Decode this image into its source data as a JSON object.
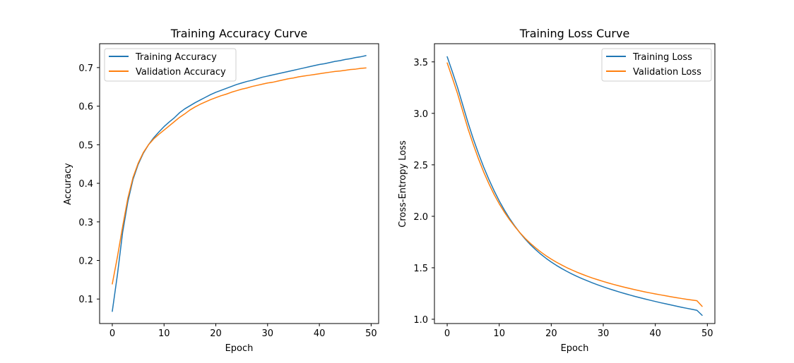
{
  "chart_data": [
    {
      "type": "line",
      "title": "Training Accuracy Curve",
      "xlabel": "Epoch",
      "ylabel": "Accuracy",
      "xlim": [
        -2.45,
        51.45
      ],
      "ylim": [
        0.0365,
        0.7619
      ],
      "xticks": [
        0,
        10,
        20,
        30,
        40,
        50
      ],
      "yticks": [
        0.1,
        0.2,
        0.3,
        0.4,
        0.5,
        0.6,
        0.7
      ],
      "legend_position": "top-left",
      "grid": false,
      "series": [
        {
          "name": "Training Accuracy",
          "color": "#1f77b4",
          "x": [
            0,
            1,
            2,
            3,
            4,
            5,
            6,
            7,
            8,
            9,
            10,
            11,
            12,
            13,
            14,
            15,
            16,
            17,
            18,
            19,
            20,
            21,
            22,
            23,
            24,
            25,
            26,
            27,
            28,
            29,
            30,
            31,
            32,
            33,
            34,
            35,
            36,
            37,
            38,
            39,
            40,
            41,
            42,
            43,
            44,
            45,
            46,
            47,
            48,
            49
          ],
          "values": [
            0.068,
            0.164,
            0.273,
            0.352,
            0.41,
            0.449,
            0.478,
            0.5,
            0.518,
            0.533,
            0.547,
            0.559,
            0.57,
            0.583,
            0.593,
            0.601,
            0.609,
            0.616,
            0.623,
            0.63,
            0.636,
            0.641,
            0.646,
            0.651,
            0.656,
            0.66,
            0.664,
            0.667,
            0.671,
            0.675,
            0.678,
            0.681,
            0.684,
            0.687,
            0.69,
            0.693,
            0.696,
            0.699,
            0.702,
            0.705,
            0.708,
            0.71,
            0.713,
            0.716,
            0.718,
            0.721,
            0.723,
            0.726,
            0.728,
            0.731
          ]
        },
        {
          "name": "Validation Accuracy",
          "color": "#ff7f0e",
          "x": [
            0,
            1,
            2,
            3,
            4,
            5,
            6,
            7,
            8,
            9,
            10,
            11,
            12,
            13,
            14,
            15,
            16,
            17,
            18,
            19,
            20,
            21,
            22,
            23,
            24,
            25,
            26,
            27,
            28,
            29,
            30,
            31,
            32,
            33,
            34,
            35,
            36,
            37,
            38,
            39,
            40,
            41,
            42,
            43,
            44,
            45,
            46,
            47,
            48,
            49
          ],
          "values": [
            0.139,
            0.21,
            0.288,
            0.361,
            0.415,
            0.452,
            0.48,
            0.5,
            0.515,
            0.527,
            0.538,
            0.549,
            0.56,
            0.571,
            0.58,
            0.59,
            0.598,
            0.605,
            0.611,
            0.617,
            0.622,
            0.627,
            0.631,
            0.636,
            0.64,
            0.644,
            0.647,
            0.651,
            0.654,
            0.657,
            0.66,
            0.662,
            0.665,
            0.668,
            0.671,
            0.673,
            0.676,
            0.678,
            0.68,
            0.682,
            0.684,
            0.686,
            0.688,
            0.69,
            0.691,
            0.693,
            0.695,
            0.696,
            0.698,
            0.699
          ]
        }
      ]
    },
    {
      "type": "line",
      "title": "Training Loss Curve",
      "xlabel": "Epoch",
      "ylabel": "Cross-Entropy Loss",
      "xlim": [
        -2.45,
        51.45
      ],
      "ylim": [
        0.9585,
        3.6765
      ],
      "xticks": [
        0,
        10,
        20,
        30,
        40,
        50
      ],
      "yticks": [
        1.0,
        1.5,
        2.0,
        2.5,
        3.0,
        3.5
      ],
      "legend_position": "top-right",
      "grid": false,
      "series": [
        {
          "name": "Training Loss",
          "color": "#1f77b4",
          "x": [
            0,
            1,
            2,
            3,
            4,
            5,
            6,
            7,
            8,
            9,
            10,
            11,
            12,
            13,
            14,
            15,
            16,
            17,
            18,
            19,
            20,
            21,
            22,
            23,
            24,
            25,
            26,
            27,
            28,
            29,
            30,
            31,
            32,
            33,
            34,
            35,
            36,
            37,
            38,
            39,
            40,
            41,
            42,
            43,
            44,
            45,
            46,
            47,
            48,
            49
          ],
          "values": [
            3.55,
            3.403,
            3.25,
            3.08,
            2.91,
            2.755,
            2.612,
            2.48,
            2.36,
            2.25,
            2.15,
            2.06,
            1.978,
            1.905,
            1.838,
            1.778,
            1.724,
            1.676,
            1.632,
            1.592,
            1.556,
            1.523,
            1.493,
            1.465,
            1.439,
            1.415,
            1.393,
            1.372,
            1.352,
            1.333,
            1.315,
            1.298,
            1.282,
            1.266,
            1.251,
            1.237,
            1.223,
            1.21,
            1.197,
            1.185,
            1.173,
            1.161,
            1.15,
            1.139,
            1.128,
            1.117,
            1.107,
            1.097,
            1.087,
            1.038
          ]
        },
        {
          "name": "Validation Loss",
          "color": "#ff7f0e",
          "x": [
            0,
            1,
            2,
            3,
            4,
            5,
            6,
            7,
            8,
            9,
            10,
            11,
            12,
            13,
            14,
            15,
            16,
            17,
            18,
            19,
            20,
            21,
            22,
            23,
            24,
            25,
            26,
            27,
            28,
            29,
            30,
            31,
            32,
            33,
            34,
            35,
            36,
            37,
            38,
            39,
            40,
            41,
            42,
            43,
            44,
            45,
            46,
            47,
            48,
            49
          ],
          "values": [
            3.49,
            3.343,
            3.19,
            3.02,
            2.85,
            2.7,
            2.56,
            2.432,
            2.318,
            2.214,
            2.122,
            2.04,
            1.966,
            1.9,
            1.84,
            1.785,
            1.737,
            1.693,
            1.653,
            1.617,
            1.584,
            1.554,
            1.527,
            1.501,
            1.478,
            1.456,
            1.436,
            1.417,
            1.399,
            1.383,
            1.367,
            1.352,
            1.338,
            1.325,
            1.312,
            1.3,
            1.288,
            1.277,
            1.266,
            1.256,
            1.246,
            1.237,
            1.228,
            1.219,
            1.21,
            1.202,
            1.194,
            1.187,
            1.18,
            1.125
          ]
        }
      ]
    }
  ]
}
